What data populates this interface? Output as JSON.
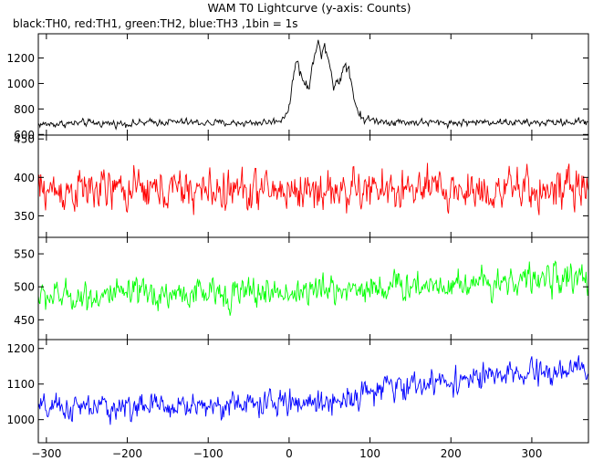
{
  "title": "WAM T0 Lightcurve (y-axis: Counts)",
  "subtitle": "black:TH0, red:TH1, green:TH2, blue:TH3 ,1bin = 1s",
  "chart_data": {
    "type": "line",
    "title": "WAM T0 Lightcurve (y-axis: Counts)",
    "subtitle": "black:TH0, red:TH1, green:TH2, blue:TH3 ,1bin = 1s",
    "xlabel": "",
    "ylabel": "Counts",
    "xlim": [
      -310,
      370
    ],
    "x_ticks": [
      -300,
      -200,
      -100,
      0,
      100,
      200,
      300
    ],
    "x_tick_labels": [
      "−300",
      "−200",
      "−100",
      "0",
      "100",
      "200",
      "300"
    ],
    "grid": false,
    "panels": [
      {
        "name": "TH0",
        "color": "#000000",
        "ylim": [
          595,
          1390
        ],
        "y_ticks": [
          600,
          800,
          1000,
          1200
        ],
        "y_tick_labels": [
          "600",
          "800",
          "1000",
          "1200"
        ],
        "points": [
          [
            -300,
            680
          ],
          [
            -250,
            690
          ],
          [
            -200,
            685
          ],
          [
            -150,
            700
          ],
          [
            -100,
            690
          ],
          [
            -50,
            690
          ],
          [
            -20,
            700
          ],
          [
            -10,
            715
          ],
          [
            0,
            800
          ],
          [
            8,
            1200
          ],
          [
            12,
            1120
          ],
          [
            18,
            1010
          ],
          [
            25,
            960
          ],
          [
            32,
            1270
          ],
          [
            36,
            1360
          ],
          [
            40,
            1180
          ],
          [
            44,
            1320
          ],
          [
            48,
            1230
          ],
          [
            55,
            990
          ],
          [
            62,
            1010
          ],
          [
            68,
            1160
          ],
          [
            74,
            1120
          ],
          [
            80,
            900
          ],
          [
            86,
            760
          ],
          [
            95,
            720
          ],
          [
            120,
            700
          ],
          [
            200,
            690
          ],
          [
            250,
            700
          ],
          [
            300,
            690
          ],
          [
            365,
            700
          ]
        ],
        "noise": 25
      },
      {
        "name": "TH1",
        "color": "#ff0000",
        "ylim": [
          322,
          455
        ],
        "y_ticks": [
          350,
          400,
          450
        ],
        "y_tick_labels": [
          "350",
          "400",
          "450"
        ],
        "points": [
          [
            -300,
            383
          ],
          [
            0,
            383
          ],
          [
            365,
            383
          ]
        ],
        "noise": 24
      },
      {
        "name": "TH2",
        "color": "#00ff00",
        "ylim": [
          420,
          575
        ],
        "y_ticks": [
          450,
          500,
          550
        ],
        "y_tick_labels": [
          "450",
          "500",
          "550"
        ],
        "points": [
          [
            -300,
            485
          ],
          [
            0,
            492
          ],
          [
            200,
            505
          ],
          [
            365,
            515
          ]
        ],
        "noise": 20
      },
      {
        "name": "TH3",
        "color": "#0000ff",
        "ylim": [
          935,
          1225
        ],
        "y_ticks": [
          1000,
          1100,
          1200
        ],
        "y_tick_labels": [
          "1000",
          "1100",
          "1200"
        ],
        "points": [
          [
            -300,
            1030
          ],
          [
            -100,
            1040
          ],
          [
            50,
            1050
          ],
          [
            100,
            1080
          ],
          [
            200,
            1110
          ],
          [
            365,
            1140
          ]
        ],
        "noise": 32
      }
    ]
  }
}
